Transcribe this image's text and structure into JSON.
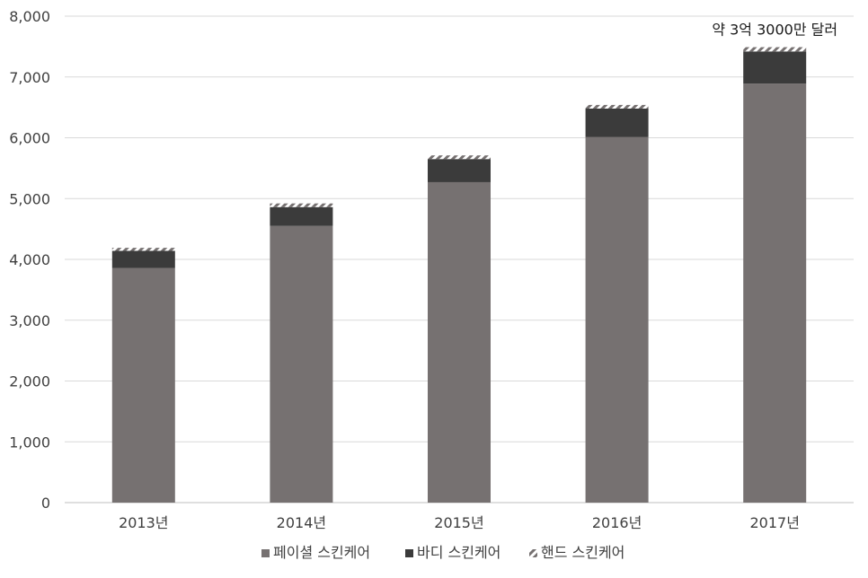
{
  "chart_data": {
    "type": "bar",
    "stacked": true,
    "categories": [
      "2013년",
      "2014년",
      "2015년",
      "2016년",
      "2017년"
    ],
    "series": [
      {
        "name": "페이셜 스킨케어",
        "color": "#767171",
        "values": [
          3860,
          4550,
          5270,
          6010,
          6890
        ],
        "pattern": "solid"
      },
      {
        "name": "바디 스킨케어",
        "color": "#3b3b3b",
        "values": [
          280,
          310,
          380,
          470,
          530
        ],
        "pattern": "solid"
      },
      {
        "name": "핸드 스킨케어",
        "color": "#767171",
        "values": [
          50,
          60,
          60,
          60,
          70
        ],
        "pattern": "hatch"
      }
    ],
    "y_ticks": [
      "0",
      "1,000",
      "2,000",
      "3,000",
      "4,000",
      "5,000",
      "6,000",
      "7,000",
      "8,000"
    ],
    "ylim": [
      0,
      8000
    ],
    "grid": true,
    "legend_position": "bottom",
    "annotation": {
      "text": "약 3억 3000만 달러",
      "category_index": 4
    }
  }
}
